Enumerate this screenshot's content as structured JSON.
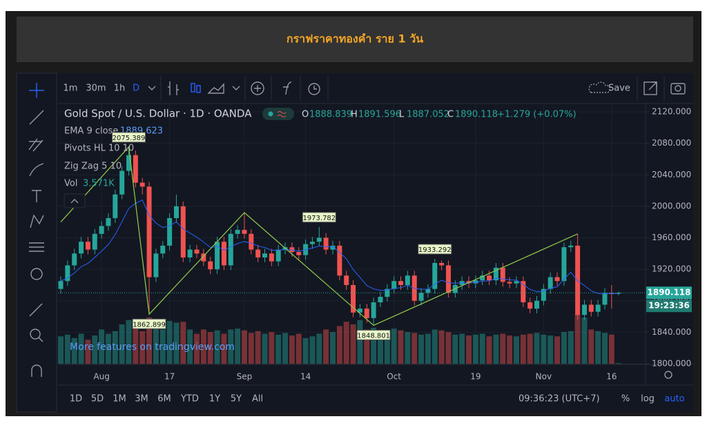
{
  "page_title": "กราฟราคาทองคำ ราย 1 วัน",
  "toolbar": {
    "intervals": [
      "1m",
      "30m",
      "1h",
      "D"
    ],
    "save": "Save"
  },
  "chart_data": {
    "type": "candlestick",
    "title": "Gold Spot / U.S. Dollar · 1D · OANDA",
    "ohlc_prefixes": [
      "O",
      "H",
      "L",
      "C"
    ],
    "change": "+1.279 (+0.07%)",
    "indicators": {
      "ema": "EMA 9 close",
      "ema_value": 1889.623,
      "pivots": "Pivots HL 10 10",
      "zigzag": "Zig Zag 5 10",
      "vol": "Vol",
      "vol_value_label": "3.571K"
    },
    "watermark": "More features on tradingview.com",
    "open": [
      1895,
      1905,
      1925,
      1940,
      1955,
      1945,
      1965,
      1975,
      1985,
      2015,
      2045,
      2065,
      2030,
      2025,
      1910,
      1940,
      1950,
      1985,
      2000,
      1935,
      1945,
      1940,
      1930,
      1920,
      1955,
      1925,
      1965,
      1970,
      1965,
      1945,
      1935,
      1940,
      1930,
      1945,
      1948,
      1942,
      1938,
      1952,
      1955,
      1960,
      1945,
      1950,
      1912,
      1900,
      1865,
      1870,
      1858,
      1878,
      1885,
      1895,
      1905,
      1900,
      1912,
      1880,
      1890,
      1895,
      1928,
      1925,
      1890,
      1900,
      1905,
      1902,
      1906,
      1912,
      1906,
      1922,
      1904,
      1902,
      1905,
      1878,
      1870,
      1880,
      1895,
      1910,
      1905,
      1948,
      1950,
      1862,
      1875,
      1866,
      1875,
      1890,
      1888.839
    ],
    "high": [
      1911,
      1931,
      1946,
      1961,
      1961,
      1971,
      1981,
      1991,
      2021,
      2051,
      2075.389,
      2071,
      2036,
      2031,
      1946,
      1956,
      1991,
      2015,
      2006,
      1951,
      1951,
      1946,
      1936,
      1961,
      1961,
      1971,
      1976,
      1992,
      1971,
      1951,
      1946,
      1946,
      1951,
      1954,
      1954,
      1948,
      1958,
      1961,
      1973.782,
      1966,
      1956,
      1956,
      1918,
      1906,
      1876,
      1876,
      1884,
      1891,
      1901,
      1911,
      1911,
      1918,
      1918,
      1896,
      1901,
      1933.292,
      1931,
      1931,
      1906,
      1911,
      1911,
      1912,
      1918,
      1918,
      1928,
      1928,
      1910,
      1911,
      1911,
      1884,
      1886,
      1901,
      1916,
      1916,
      1954,
      1956,
      1965,
      1881,
      1881,
      1881,
      1896,
      1900,
      1891.596
    ],
    "low": [
      1889,
      1899,
      1919,
      1934,
      1939,
      1939,
      1959,
      1969,
      1979,
      2009,
      2039,
      2024,
      2015,
      1862.899,
      1904,
      1934,
      1944,
      1979,
      1929,
      1929,
      1934,
      1924,
      1914,
      1914,
      1919,
      1919,
      1959,
      1959,
      1939,
      1929,
      1929,
      1924,
      1924,
      1939,
      1936,
      1932,
      1932,
      1946,
      1949,
      1939,
      1939,
      1906,
      1894,
      1859,
      1859,
      1852,
      1848.801,
      1872,
      1879,
      1889,
      1894,
      1894,
      1874,
      1874,
      1884,
      1889,
      1919,
      1884,
      1884,
      1894,
      1896,
      1896,
      1900,
      1900,
      1900,
      1898,
      1896,
      1896,
      1872,
      1864,
      1864,
      1874,
      1889,
      1899,
      1899,
      1942,
      1856,
      1856,
      1860,
      1860,
      1869,
      1870,
      1887.052
    ],
    "close": [
      1905,
      1925,
      1940,
      1955,
      1945,
      1965,
      1975,
      1985,
      2015,
      2045,
      2065,
      2030,
      2025,
      1910,
      1940,
      1950,
      1985,
      2000,
      1935,
      1945,
      1940,
      1930,
      1920,
      1955,
      1925,
      1965,
      1970,
      1965,
      1945,
      1935,
      1940,
      1930,
      1945,
      1948,
      1942,
      1938,
      1952,
      1955,
      1960,
      1945,
      1950,
      1912,
      1900,
      1865,
      1870,
      1858,
      1878,
      1885,
      1895,
      1905,
      1900,
      1912,
      1880,
      1890,
      1895,
      1928,
      1925,
      1890,
      1900,
      1905,
      1902,
      1906,
      1912,
      1906,
      1922,
      1904,
      1902,
      1905,
      1878,
      1870,
      1880,
      1895,
      1910,
      1905,
      1948,
      1950,
      1862,
      1875,
      1866,
      1875,
      1890,
      1888.5,
      1890.118
    ],
    "volume": [
      160,
      170,
      150,
      175,
      140,
      165,
      200,
      175,
      190,
      230,
      255,
      215,
      190,
      270,
      215,
      200,
      250,
      240,
      245,
      200,
      175,
      200,
      185,
      195,
      175,
      200,
      205,
      195,
      180,
      190,
      175,
      185,
      170,
      180,
      165,
      175,
      150,
      160,
      175,
      200,
      185,
      220,
      245,
      230,
      255,
      200,
      210,
      185,
      180,
      205,
      195,
      185,
      180,
      170,
      175,
      200,
      195,
      185,
      170,
      175,
      165,
      170,
      175,
      160,
      170,
      175,
      165,
      160,
      170,
      175,
      180,
      170,
      165,
      160,
      185,
      190,
      290,
      270,
      200,
      190,
      180,
      170,
      3.571
    ],
    "up_color": "#26a69a",
    "down_color": "#ef5350",
    "zigzag": {
      "index": [
        0,
        10,
        13,
        27,
        46,
        76
      ],
      "values": [
        1980,
        2075.389,
        1862.899,
        1992,
        1848.801,
        1965
      ],
      "color": "#8bc34a"
    },
    "pivot_labels": [
      {
        "index": 10,
        "side": "high"
      },
      {
        "index": 13,
        "side": "low"
      },
      {
        "index": 38,
        "side": "high"
      },
      {
        "index": 46,
        "side": "low"
      },
      {
        "index": 55,
        "side": "high"
      }
    ],
    "ylim": [
      1800,
      2120
    ],
    "yticks": [
      {
        "value": 1800,
        "label": "1800.000"
      },
      {
        "value": 1840,
        "label": "1840.000"
      },
      {
        "value": 1880,
        "label": "1880.000"
      },
      {
        "value": 1920,
        "label": "1920.000"
      },
      {
        "value": 1960,
        "label": "1960.000"
      },
      {
        "value": 2000,
        "label": "2000.000"
      },
      {
        "value": 2040,
        "label": "2040.000"
      },
      {
        "value": 2080,
        "label": "2080.000"
      },
      {
        "value": 2120,
        "label": "2120.000"
      }
    ],
    "xtick_labels": [
      "Aug",
      "17",
      "Sep",
      "14",
      "Oct",
      "19",
      "Nov",
      "16"
    ],
    "xtick_index": [
      6,
      16,
      27,
      36,
      49,
      61,
      71,
      81
    ],
    "countdown": "19:23:36",
    "grid": true
  },
  "bottom_bar": {
    "ranges": [
      "1D",
      "5D",
      "1M",
      "3M",
      "6M",
      "YTD",
      "1Y",
      "5Y",
      "All"
    ],
    "time": "09:36:23 (UTC+7)",
    "options": [
      "%",
      "log",
      "auto"
    ]
  }
}
